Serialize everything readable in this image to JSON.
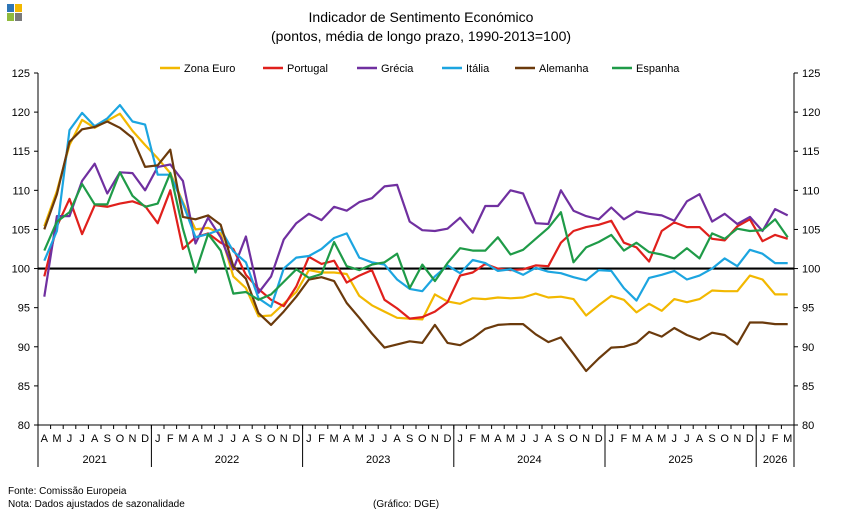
{
  "logo_colors": [
    "#2e75b6",
    "#f2b800",
    "#8fba3c",
    "#7a7a7a"
  ],
  "footer": {
    "source": "Fonte: Comissão Europeia",
    "note": "Nota: Dados ajustados de sazonalidade",
    "credit": "(Gráfico: DGE)"
  },
  "chart_data": {
    "type": "line",
    "title": "Indicador de Sentimento Económico",
    "subtitle": "(pontos, média de longo prazo, 1990-2013=100)",
    "xlabel": "",
    "ylabel": "",
    "ylim": [
      80,
      125
    ],
    "yticks": [
      80,
      85,
      90,
      95,
      100,
      105,
      110,
      115,
      120,
      125
    ],
    "reference_line": 100,
    "legend_position": "top",
    "month_labels": [
      "A",
      "M",
      "J",
      "J",
      "A",
      "S",
      "O",
      "N",
      "D",
      "J",
      "F",
      "M",
      "A",
      "M",
      "J",
      "J",
      "A",
      "S",
      "O",
      "N",
      "D",
      "J",
      "F",
      "M",
      "A",
      "M",
      "J",
      "J",
      "A",
      "S",
      "O",
      "N",
      "D",
      "J",
      "F",
      "M",
      "A",
      "M",
      "J",
      "J",
      "A",
      "S",
      "O",
      "N",
      "D",
      "J",
      "F",
      "M",
      "A",
      "M",
      "J",
      "J",
      "A",
      "S",
      "O",
      "N",
      "D",
      "J",
      "F",
      "M"
    ],
    "years": [
      {
        "label": "2021",
        "start": 0,
        "end": 8
      },
      {
        "label": "2022",
        "start": 9,
        "end": 20
      },
      {
        "label": "2023",
        "start": 21,
        "end": 32
      },
      {
        "label": "2024",
        "start": 33,
        "end": 44
      },
      {
        "label": "2025",
        "start": 45,
        "end": 56
      },
      {
        "label": "2026",
        "start": 57,
        "end": 59
      }
    ],
    "series": [
      {
        "name": "Zona Euro",
        "color": "#f2b800",
        "values": [
          105.4,
          109.9,
          115.8,
          119.0,
          118.0,
          118.9,
          119.8,
          117.6,
          115.8,
          114.1,
          112.2,
          108.5,
          105.0,
          105.2,
          104.5,
          99.0,
          97.5,
          93.9,
          94.0,
          95.5,
          97.0,
          99.8,
          99.5,
          99.5,
          99.3,
          96.5,
          95.3,
          94.5,
          93.7,
          93.6,
          93.5,
          96.7,
          95.8,
          95.5,
          96.2,
          96.1,
          96.3,
          96.2,
          96.3,
          96.8,
          96.3,
          96.4,
          96.1,
          94.0,
          95.3,
          96.5,
          96.0,
          94.4,
          95.5,
          94.6,
          96.1,
          95.7,
          96.1,
          97.2,
          97.1,
          97.1,
          99.1,
          98.6,
          96.7,
          96.7
        ]
      },
      {
        "name": "Portugal",
        "color": "#e0201c",
        "values": [
          99.0,
          105.4,
          108.9,
          104.4,
          108.1,
          107.9,
          108.3,
          108.6,
          108.0,
          105.8,
          110.0,
          102.5,
          104.0,
          104.5,
          103.3,
          102.5,
          99.2,
          97.4,
          96.0,
          95.2,
          97.7,
          101.5,
          100.6,
          101.0,
          98.2,
          99.1,
          99.8,
          96.0,
          94.9,
          93.6,
          93.8,
          94.5,
          95.7,
          99.1,
          99.5,
          100.6,
          100.0,
          99.8,
          99.9,
          100.4,
          100.3,
          103.3,
          104.8,
          105.3,
          105.6,
          106.1,
          103.3,
          102.7,
          100.9,
          104.8,
          105.9,
          105.3,
          105.3,
          103.8,
          103.6,
          105.4,
          106.3,
          103.5,
          104.3,
          103.8
        ]
      },
      {
        "name": "Grécia",
        "color": "#7030a0",
        "values": [
          96.4,
          106.7,
          106.7,
          111.2,
          113.4,
          109.6,
          112.3,
          112.2,
          110.0,
          113.0,
          113.3,
          111.2,
          103.2,
          106.5,
          104.0,
          99.9,
          104.1,
          96.9,
          99.0,
          103.7,
          105.8,
          107.0,
          106.2,
          107.9,
          107.4,
          108.5,
          109.0,
          110.5,
          110.7,
          106.0,
          104.9,
          104.8,
          105.1,
          106.5,
          104.6,
          108.0,
          108.0,
          110.0,
          109.6,
          105.8,
          105.7,
          110.0,
          107.4,
          106.7,
          106.3,
          107.8,
          106.3,
          107.3,
          107.0,
          106.8,
          106.1,
          108.6,
          109.5,
          106.0,
          107.0,
          105.7,
          106.6,
          104.8,
          107.6,
          106.8
        ]
      },
      {
        "name": "Itália",
        "color": "#1ca5e0",
        "values": [
          101.0,
          104.8,
          117.7,
          119.9,
          118.2,
          119.2,
          120.9,
          118.8,
          118.4,
          112.0,
          112.0,
          108.3,
          104.0,
          104.4,
          105.0,
          102.2,
          100.8,
          96.2,
          95.1,
          100.0,
          101.4,
          101.6,
          102.5,
          103.9,
          104.5,
          101.4,
          100.8,
          100.5,
          98.6,
          97.4,
          97.1,
          99.0,
          100.4,
          99.4,
          101.1,
          100.7,
          99.7,
          99.9,
          99.2,
          100.1,
          99.6,
          99.4,
          98.9,
          98.5,
          99.8,
          99.7,
          97.5,
          95.9,
          98.8,
          99.2,
          99.7,
          98.6,
          99.1,
          100.0,
          101.3,
          100.3,
          102.4,
          101.9,
          100.7,
          100.7
        ]
      },
      {
        "name": "Alemanha",
        "color": "#6b3a0c",
        "values": [
          105.0,
          109.5,
          116.2,
          117.8,
          118.1,
          118.8,
          118.0,
          116.7,
          113.0,
          113.2,
          115.2,
          106.6,
          106.3,
          106.8,
          105.6,
          100.3,
          98.7,
          94.3,
          92.8,
          94.5,
          96.4,
          98.6,
          98.9,
          98.4,
          95.6,
          93.7,
          91.7,
          89.9,
          90.3,
          90.7,
          90.5,
          92.8,
          90.5,
          90.2,
          91.1,
          92.3,
          92.8,
          92.9,
          92.9,
          91.6,
          90.6,
          91.2,
          89.1,
          86.9,
          88.5,
          89.9,
          90.0,
          90.5,
          91.9,
          91.3,
          92.4,
          91.5,
          90.9,
          91.8,
          91.5,
          90.3,
          93.1,
          93.1,
          92.9,
          92.9
        ]
      },
      {
        "name": "Espanha",
        "color": "#1f9b48",
        "values": [
          102.3,
          106.0,
          107.2,
          110.8,
          108.2,
          108.2,
          112.3,
          109.3,
          107.9,
          108.3,
          112.2,
          105.1,
          99.5,
          104.4,
          102.3,
          96.8,
          97.0,
          96.0,
          96.7,
          98.3,
          99.9,
          98.8,
          99.3,
          103.4,
          100.3,
          99.8,
          100.5,
          100.8,
          101.9,
          97.5,
          100.5,
          98.4,
          100.7,
          102.6,
          102.3,
          102.3,
          104.0,
          101.8,
          102.4,
          103.8,
          105.2,
          107.2,
          100.8,
          102.7,
          103.4,
          104.3,
          102.3,
          103.3,
          102.1,
          101.8,
          101.3,
          102.6,
          101.3,
          104.5,
          103.8,
          105.1,
          104.8,
          104.9,
          106.3,
          104.0
        ]
      }
    ]
  }
}
